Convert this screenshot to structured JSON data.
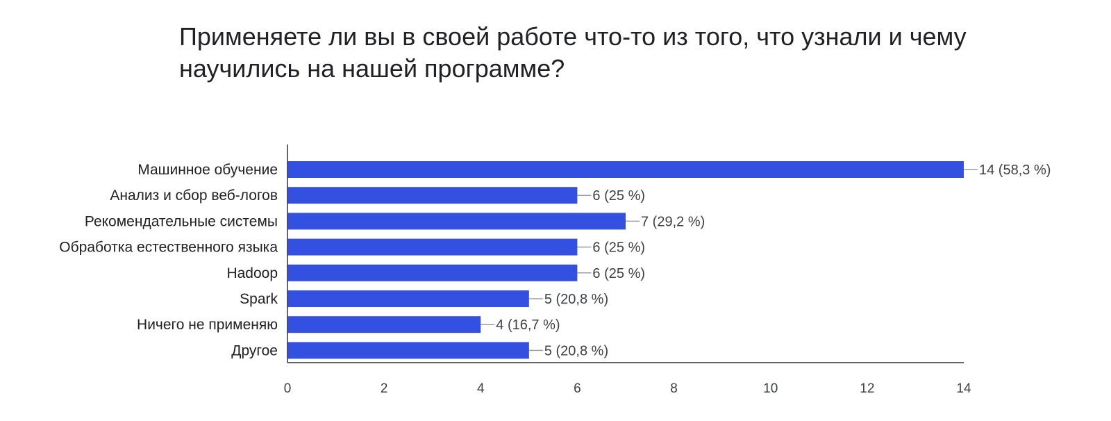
{
  "chart_data": {
    "type": "bar",
    "orientation": "horizontal",
    "title": "Применяете ли вы в своей работе что-то из того, что узнали и чему научились на нашей программе?",
    "categories": [
      "Машинное обучение",
      "Анализ и сбор веб-логов",
      "Рекомендательные системы",
      "Обработка естественного языка",
      "Hadoop",
      "Spark",
      "Ничего не применяю",
      "Другое"
    ],
    "values": [
      14,
      6,
      7,
      6,
      6,
      5,
      4,
      5
    ],
    "value_labels": [
      "14 (58,3 %)",
      "6 (25 %)",
      "7 (29,2 %)",
      "6 (25 %)",
      "6 (25 %)",
      "5 (20,8 %)",
      "4 (16,7 %)",
      "5 (20,8 %)"
    ],
    "xlim": [
      0,
      14
    ],
    "x_ticks": [
      0,
      2,
      4,
      6,
      8,
      10,
      12,
      14
    ],
    "grid": false,
    "bar_color": "#3450e0",
    "xlabel": "",
    "ylabel": ""
  }
}
